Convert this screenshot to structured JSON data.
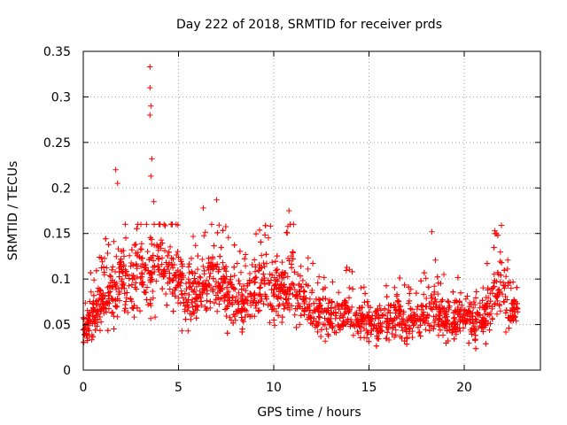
{
  "chart_data": {
    "type": "scatter",
    "title": "Day 222 of 2018, SRMTID for receiver prds",
    "xlabel": "GPS time / hours",
    "ylabel": "SRMTID / TECUs",
    "xlim": [
      0,
      24
    ],
    "ylim": [
      0,
      0.35
    ],
    "grid": true,
    "marker": "+",
    "color": "#ff0000",
    "x_ticks": [
      0,
      5,
      10,
      15,
      20
    ],
    "x_tick_labels": [
      "0",
      "5",
      "10",
      "15",
      "20"
    ],
    "y_ticks": [
      0,
      0.05,
      0.1,
      0.15,
      0.2,
      0.25,
      0.3,
      0.35
    ],
    "y_tick_labels": [
      "0",
      "0.05",
      "0.1",
      "0.15",
      "0.2",
      "0.25",
      "0.3",
      "0.35"
    ],
    "series": [
      {
        "name": "prds",
        "time_range_hours": [
          0,
          22.8
        ],
        "profile": [
          [
            0.0,
            0.045
          ],
          [
            0.5,
            0.06
          ],
          [
            1.0,
            0.075
          ],
          [
            1.5,
            0.085
          ],
          [
            2.0,
            0.1
          ],
          [
            2.5,
            0.095
          ],
          [
            3.0,
            0.11
          ],
          [
            3.5,
            0.105
          ],
          [
            4.0,
            0.12
          ],
          [
            4.5,
            0.1
          ],
          [
            5.0,
            0.095
          ],
          [
            5.5,
            0.085
          ],
          [
            6.0,
            0.09
          ],
          [
            6.5,
            0.095
          ],
          [
            7.0,
            0.1
          ],
          [
            7.5,
            0.085
          ],
          [
            8.0,
            0.075
          ],
          [
            8.5,
            0.07
          ],
          [
            9.0,
            0.085
          ],
          [
            9.5,
            0.09
          ],
          [
            10.0,
            0.085
          ],
          [
            10.5,
            0.095
          ],
          [
            11.0,
            0.09
          ],
          [
            11.5,
            0.075
          ],
          [
            12.0,
            0.065
          ],
          [
            12.5,
            0.06
          ],
          [
            13.0,
            0.055
          ],
          [
            13.5,
            0.06
          ],
          [
            14.0,
            0.06
          ],
          [
            14.5,
            0.055
          ],
          [
            15.0,
            0.055
          ],
          [
            15.5,
            0.05
          ],
          [
            16.0,
            0.055
          ],
          [
            16.5,
            0.06
          ],
          [
            17.0,
            0.05
          ],
          [
            17.5,
            0.055
          ],
          [
            18.0,
            0.06
          ],
          [
            18.5,
            0.065
          ],
          [
            19.0,
            0.055
          ],
          [
            19.5,
            0.055
          ],
          [
            20.0,
            0.06
          ],
          [
            20.5,
            0.055
          ],
          [
            21.0,
            0.055
          ],
          [
            21.5,
            0.08
          ],
          [
            22.0,
            0.09
          ],
          [
            22.5,
            0.07
          ],
          [
            22.8,
            0.065
          ]
        ],
        "peaks": [
          {
            "x": 1.7,
            "y": 0.22
          },
          {
            "x": 1.8,
            "y": 0.205
          },
          {
            "x": 3.5,
            "y": 0.333
          },
          {
            "x": 3.5,
            "y": 0.31
          },
          {
            "x": 3.55,
            "y": 0.29
          },
          {
            "x": 3.5,
            "y": 0.28
          },
          {
            "x": 3.6,
            "y": 0.232
          },
          {
            "x": 3.55,
            "y": 0.213
          },
          {
            "x": 3.7,
            "y": 0.185
          },
          {
            "x": 6.3,
            "y": 0.178
          },
          {
            "x": 7.0,
            "y": 0.187
          },
          {
            "x": 10.8,
            "y": 0.175
          },
          {
            "x": 18.3,
            "y": 0.152
          },
          {
            "x": 21.6,
            "y": 0.153
          }
        ]
      }
    ]
  }
}
